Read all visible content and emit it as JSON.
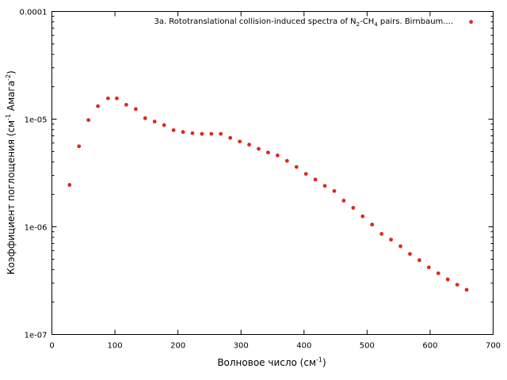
{
  "chart_data": {
    "type": "scatter",
    "title": "",
    "xlabel": "Волновое число (см",
    "xlabel_sup": "-1",
    "xlabel_end": ")",
    "ylabel": "Коэффициент поглощения (см",
    "ylabel_sup1": "-1",
    "ylabel_mid": " Амага",
    "ylabel_sup2": "-2",
    "ylabel_end": ")",
    "xlim": [
      0,
      700
    ],
    "ylim": [
      1e-07,
      0.0001
    ],
    "yscale": "log",
    "grid": false,
    "legend": "top-right",
    "x_ticks": [
      "0",
      "100",
      "200",
      "300",
      "400",
      "500",
      "600",
      "700"
    ],
    "y_ticks": [
      "1e-07",
      "1e-06",
      "1e-05",
      "0.0001"
    ],
    "series": [
      {
        "name": "3a. Rototranslational collision-induced spectra of N2-CH4 pairs. Birnbaum....",
        "name_parts": [
          "3a. Rototranslational collision-induced spectra of N",
          "2",
          "-CH",
          "4",
          " pairs. Birnbaum...."
        ],
        "color": "#e0281e",
        "x": [
          28,
          43,
          58,
          73,
          89,
          103,
          118,
          133,
          148,
          163,
          178,
          193,
          208,
          223,
          238,
          253,
          268,
          283,
          298,
          313,
          328,
          343,
          358,
          373,
          388,
          403,
          418,
          433,
          448,
          463,
          478,
          493,
          508,
          523,
          538,
          553,
          568,
          583,
          598,
          613,
          628,
          643,
          658,
          665
        ],
        "y": [
          2.45e-06,
          5.6e-06,
          9.8e-06,
          1.32e-05,
          1.56e-05,
          1.56e-05,
          1.36e-05,
          1.24e-05,
          1.02e-05,
          9.5e-06,
          8.8e-06,
          7.9e-06,
          7.6e-06,
          7.4e-06,
          7.3e-06,
          7.3e-06,
          7.3e-06,
          6.7e-06,
          6.2e-06,
          5.8e-06,
          5.3e-06,
          4.9e-06,
          4.6e-06,
          4.1e-06,
          3.6e-06,
          3.1e-06,
          2.75e-06,
          2.4e-06,
          2.15e-06,
          1.75e-06,
          1.5e-06,
          1.25e-06,
          1.05e-06,
          8.6e-07,
          7.6e-07,
          6.6e-07,
          5.6e-07,
          4.9e-07,
          4.2e-07,
          3.7e-07,
          3.25e-07,
          2.9e-07,
          2.6e-07,
          8e-05
        ]
      }
    ]
  }
}
